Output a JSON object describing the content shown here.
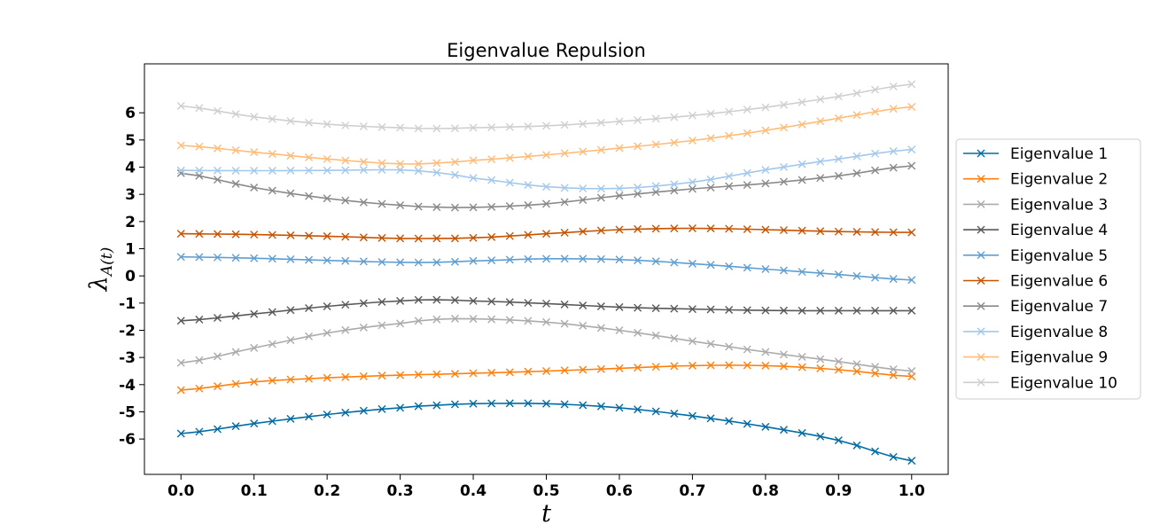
{
  "chart_data": {
    "type": "line",
    "title": "Eigenvalue Repulsion",
    "xlabel": "t",
    "ylabel": "λ_A(t)",
    "ylabel_main": "λ",
    "ylabel_sub": "A(t)",
    "xlim": [
      -0.05,
      1.05
    ],
    "ylim": [
      -7.3,
      7.8
    ],
    "x_ticks": [
      "0.0",
      "0.1",
      "0.2",
      "0.3",
      "0.4",
      "0.5",
      "0.6",
      "0.7",
      "0.8",
      "0.9",
      "1.0"
    ],
    "y_ticks": [
      "-6",
      "-5",
      "-4",
      "-3",
      "-2",
      "-1",
      "0",
      "1",
      "2",
      "3",
      "4",
      "5",
      "6"
    ],
    "grid": false,
    "legend_position": "outside-right",
    "marker": "x",
    "x": [
      0.0,
      0.1,
      0.2,
      0.3,
      0.35,
      0.4,
      0.5,
      0.6,
      0.7,
      0.8,
      0.9,
      1.0
    ],
    "series": [
      {
        "name": "Eigenvalue 1",
        "color": "#006ba4",
        "values": [
          -5.8,
          -5.43,
          -5.1,
          -4.85,
          -4.76,
          -4.7,
          -4.7,
          -4.85,
          -5.15,
          -5.55,
          -6.05,
          -6.8
        ]
      },
      {
        "name": "Eigenvalue 2",
        "color": "#ff800e",
        "values": [
          -4.2,
          -3.9,
          -3.75,
          -3.65,
          -3.62,
          -3.58,
          -3.5,
          -3.4,
          -3.3,
          -3.3,
          -3.45,
          -3.7
        ]
      },
      {
        "name": "Eigenvalue 3",
        "color": "#ababab",
        "values": [
          -3.2,
          -2.65,
          -2.1,
          -1.75,
          -1.6,
          -1.58,
          -1.7,
          -2.0,
          -2.4,
          -2.8,
          -3.15,
          -3.5
        ]
      },
      {
        "name": "Eigenvalue 4",
        "color": "#595959",
        "values": [
          -1.65,
          -1.4,
          -1.12,
          -0.92,
          -0.88,
          -0.92,
          -1.02,
          -1.15,
          -1.22,
          -1.27,
          -1.28,
          -1.28
        ]
      },
      {
        "name": "Eigenvalue 5",
        "color": "#5f9ed1",
        "values": [
          0.7,
          0.65,
          0.57,
          0.5,
          0.5,
          0.55,
          0.63,
          0.6,
          0.45,
          0.25,
          0.05,
          -0.15
        ]
      },
      {
        "name": "Eigenvalue 6",
        "color": "#c85200",
        "values": [
          1.55,
          1.52,
          1.46,
          1.38,
          1.38,
          1.4,
          1.55,
          1.7,
          1.75,
          1.7,
          1.63,
          1.6
        ]
      },
      {
        "name": "Eigenvalue 7",
        "color": "#898989",
        "values": [
          3.78,
          3.25,
          2.85,
          2.6,
          2.53,
          2.52,
          2.65,
          2.95,
          3.2,
          3.4,
          3.68,
          4.05
        ]
      },
      {
        "name": "Eigenvalue 8",
        "color": "#a2c8ec",
        "values": [
          3.88,
          3.87,
          3.88,
          3.9,
          3.8,
          3.6,
          3.28,
          3.22,
          3.45,
          3.9,
          4.3,
          4.65
        ]
      },
      {
        "name": "Eigenvalue 9",
        "color": "#ffbc79",
        "values": [
          4.8,
          4.55,
          4.3,
          4.12,
          4.15,
          4.25,
          4.45,
          4.7,
          4.98,
          5.35,
          5.8,
          6.22
        ]
      },
      {
        "name": "Eigenvalue 10",
        "color": "#cfcfcf",
        "values": [
          6.25,
          5.85,
          5.58,
          5.45,
          5.42,
          5.45,
          5.52,
          5.68,
          5.9,
          6.2,
          6.6,
          7.05
        ]
      }
    ]
  }
}
